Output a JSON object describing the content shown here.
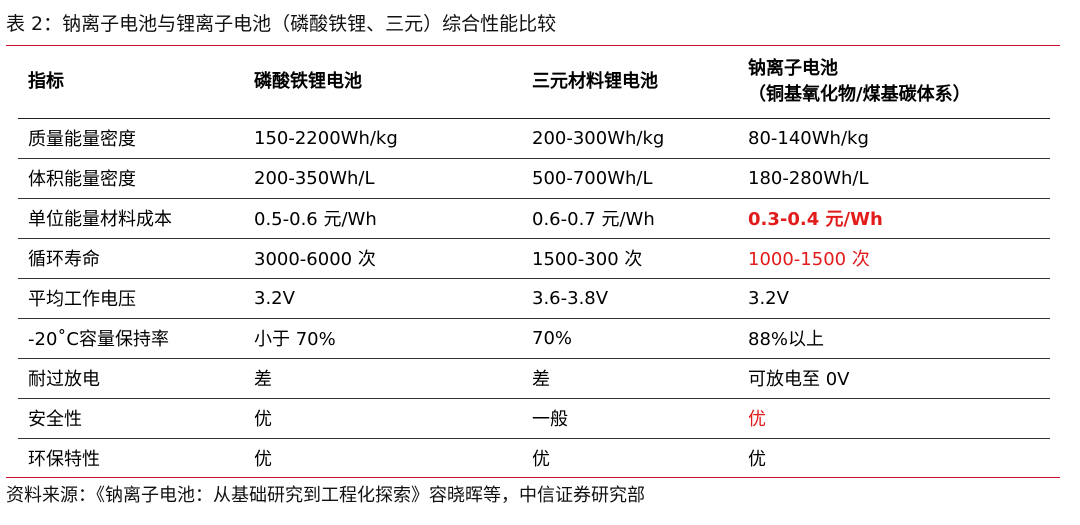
{
  "caption": "表 2：钠离子电池与锂离子电池（磷酸铁锂、三元）综合性能比较",
  "table": {
    "headers": {
      "indicator": "指标",
      "lfp": "磷酸铁锂电池",
      "ncm": "三元材料锂电池",
      "sodium_line1": "钠离子电池",
      "sodium_line2": "（铜基氧化物/煤基碳体系）"
    },
    "rows": [
      {
        "indicator": "质量能量密度",
        "lfp": "150-2200Wh/kg",
        "ncm": "200-300Wh/kg",
        "sodium": "80-140Wh/kg"
      },
      {
        "indicator": "体积能量密度",
        "lfp": "200-350Wh/L",
        "ncm": "500-700Wh/L",
        "sodium": "180-280Wh/L"
      },
      {
        "indicator": "单位能量材料成本",
        "lfp": "0.5-0.6 元/Wh",
        "ncm": "0.6-0.7 元/Wh",
        "sodium": "0.3-0.4 元/Wh"
      },
      {
        "indicator": "循环寿命",
        "lfp": "3000-6000 次",
        "ncm": "1500-300 次",
        "sodium": "1000-1500 次"
      },
      {
        "indicator": "平均工作电压",
        "lfp": "3.2V",
        "ncm": "3.6-3.8V",
        "sodium": "3.2V"
      },
      {
        "indicator": "-20˚C容量保持率",
        "lfp": "小于 70%",
        "ncm": "70%",
        "sodium": "88%以上"
      },
      {
        "indicator": "耐过放电",
        "lfp": "差",
        "ncm": "差",
        "sodium": "可放电至 0V"
      },
      {
        "indicator": "安全性",
        "lfp": "优",
        "ncm": "一般",
        "sodium": "优"
      },
      {
        "indicator": "环保特性",
        "lfp": "优",
        "ncm": "优",
        "sodium": "优"
      }
    ]
  },
  "source": "资料来源：《钠离子电池：从基础研究到工程化探索》容晓晖等，中信证券研究部",
  "colors": {
    "rule": "#c8102e",
    "highlight": "#e21b1b"
  }
}
